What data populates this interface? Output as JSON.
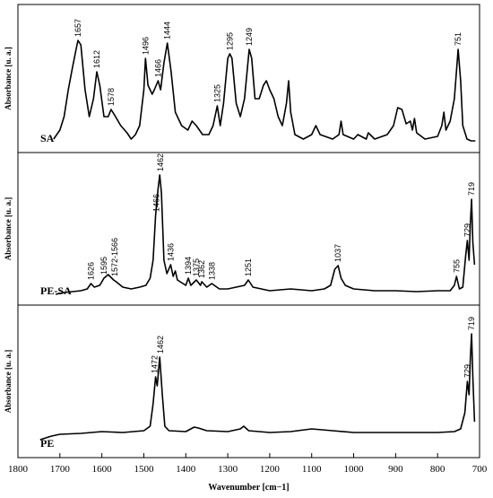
{
  "chart_data": {
    "type": "line",
    "xlabel": "Wavenumber [cm−1]",
    "ylabel": "Absorbance [u. a.]",
    "xlim": [
      1800,
      700
    ],
    "xticks": [
      1800,
      1700,
      1600,
      1500,
      1400,
      1300,
      1200,
      1100,
      1000,
      900,
      800,
      700
    ],
    "color": "#000000",
    "series": [
      {
        "name": "SA",
        "ylim": [
          0,
          165
        ],
        "x": [
          1715,
          1700,
          1690,
          1680,
          1670,
          1660,
          1657,
          1650,
          1640,
          1630,
          1620,
          1612,
          1605,
          1595,
          1585,
          1578,
          1570,
          1555,
          1540,
          1530,
          1520,
          1510,
          1500,
          1496,
          1490,
          1480,
          1475,
          1466,
          1460,
          1452,
          1444,
          1435,
          1425,
          1410,
          1395,
          1385,
          1375,
          1360,
          1345,
          1335,
          1325,
          1318,
          1310,
          1300,
          1295,
          1290,
          1280,
          1270,
          1260,
          1249,
          1243,
          1235,
          1225,
          1215,
          1208,
          1200,
          1190,
          1180,
          1170,
          1160,
          1155,
          1150,
          1140,
          1120,
          1100,
          1090,
          1080,
          1050,
          1035,
          1030,
          1025,
          1000,
          990,
          970,
          965,
          950,
          920,
          905,
          895,
          885,
          875,
          865,
          860,
          855,
          850,
          830,
          800,
          790,
          785,
          780,
          770,
          760,
          751,
          745,
          740,
          730,
          720,
          710
        ],
        "values": [
          15,
          25,
          40,
          70,
          95,
          118,
          125,
          120,
          70,
          40,
          60,
          90,
          75,
          40,
          40,
          48,
          42,
          30,
          22,
          15,
          20,
          30,
          70,
          105,
          75,
          65,
          70,
          80,
          70,
          100,
          122,
          90,
          45,
          30,
          25,
          35,
          30,
          20,
          20,
          30,
          52,
          30,
          55,
          105,
          110,
          105,
          55,
          40,
          60,
          115,
          105,
          60,
          60,
          75,
          80,
          70,
          60,
          40,
          30,
          55,
          80,
          45,
          20,
          15,
          20,
          30,
          20,
          15,
          20,
          35,
          20,
          15,
          20,
          15,
          22,
          15,
          20,
          30,
          50,
          48,
          32,
          35,
          25,
          38,
          22,
          15,
          18,
          30,
          45,
          25,
          35,
          60,
          115,
          80,
          30,
          15,
          13,
          13
        ],
        "annotations": [
          {
            "text": "1657",
            "x": 1657
          },
          {
            "text": "1612",
            "x": 1612
          },
          {
            "text": "1578",
            "x": 1578
          },
          {
            "text": "1496",
            "x": 1496
          },
          {
            "text": "1466",
            "x": 1466
          },
          {
            "text": "1444",
            "x": 1444
          },
          {
            "text": "1325",
            "x": 1325
          },
          {
            "text": "1295",
            "x": 1295
          },
          {
            "text": "1249",
            "x": 1249
          },
          {
            "text": "751",
            "x": 751
          }
        ]
      },
      {
        "name": "PE-SA",
        "ylim": [
          0,
          170
        ],
        "x": [
          1710,
          1690,
          1670,
          1650,
          1635,
          1626,
          1618,
          1605,
          1595,
          1585,
          1572,
          1566,
          1550,
          1530,
          1510,
          1495,
          1485,
          1478,
          1472,
          1466,
          1462,
          1458,
          1452,
          1445,
          1436,
          1430,
          1425,
          1420,
          1410,
          1400,
          1394,
          1388,
          1375,
          1365,
          1362,
          1350,
          1338,
          1320,
          1300,
          1280,
          1260,
          1251,
          1240,
          1200,
          1150,
          1100,
          1070,
          1055,
          1045,
          1037,
          1030,
          1020,
          1000,
          950,
          900,
          850,
          800,
          770,
          760,
          755,
          748,
          740,
          733,
          729,
          725,
          722,
          719,
          716,
          712
        ],
        "values": [
          12,
          14,
          15,
          16,
          18,
          24,
          20,
          22,
          30,
          34,
          28,
          26,
          20,
          18,
          20,
          22,
          30,
          50,
          100,
          130,
          145,
          125,
          50,
          35,
          45,
          32,
          38,
          28,
          25,
          22,
          30,
          22,
          28,
          22,
          26,
          20,
          24,
          18,
          18,
          20,
          22,
          28,
          20,
          16,
          18,
          16,
          18,
          22,
          40,
          44,
          30,
          22,
          18,
          16,
          16,
          15,
          16,
          16,
          22,
          32,
          18,
          20,
          55,
          72,
          50,
          90,
          118,
          70,
          45
        ],
        "annotations": [
          {
            "text": "1626",
            "x": 1626
          },
          {
            "text": "1595",
            "x": 1595
          },
          {
            "text": "1572-1566",
            "x": 1569
          },
          {
            "text": "1466",
            "x": 1470
          },
          {
            "text": "1462",
            "x": 1460
          },
          {
            "text": "1436",
            "x": 1436
          },
          {
            "text": "1394",
            "x": 1394
          },
          {
            "text": "1375",
            "x": 1375
          },
          {
            "text": "1362",
            "x": 1362
          },
          {
            "text": "1338",
            "x": 1338
          },
          {
            "text": "1251",
            "x": 1251
          },
          {
            "text": "1037",
            "x": 1037
          },
          {
            "text": "755",
            "x": 755
          },
          {
            "text": "729",
            "x": 729
          },
          {
            "text": "719",
            "x": 719
          }
        ]
      },
      {
        "name": "PE",
        "ylim": [
          0,
          170
        ],
        "x": [
          1747,
          1720,
          1700,
          1650,
          1600,
          1550,
          1500,
          1485,
          1478,
          1472,
          1468,
          1462,
          1456,
          1450,
          1440,
          1400,
          1380,
          1370,
          1350,
          1300,
          1270,
          1262,
          1250,
          1200,
          1150,
          1100,
          1050,
          1000,
          900,
          800,
          760,
          745,
          735,
          729,
          725,
          722,
          719,
          716,
          712
        ],
        "values": [
          20,
          24,
          26,
          27,
          29,
          28,
          30,
          35,
          60,
          90,
          80,
          112,
          70,
          35,
          30,
          29,
          34,
          33,
          30,
          29,
          32,
          35,
          30,
          28,
          29,
          32,
          30,
          28,
          28,
          28,
          29,
          32,
          50,
          85,
          70,
          110,
          138,
          90,
          40
        ],
        "annotations": [
          {
            "text": "1472",
            "x": 1474
          },
          {
            "text": "1462",
            "x": 1460
          },
          {
            "text": "729",
            "x": 729
          },
          {
            "text": "719",
            "x": 719
          }
        ]
      }
    ]
  }
}
